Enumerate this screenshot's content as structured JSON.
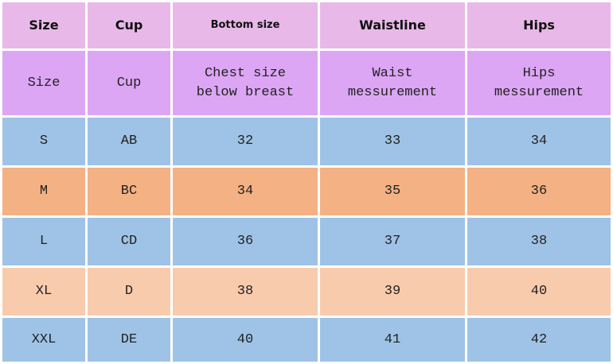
{
  "table": {
    "header": [
      "Size",
      "Cup",
      "Bottom size",
      "Waistline",
      "Hips"
    ],
    "subheader": [
      "Size",
      "Cup",
      "Chest size\nbelow breast",
      "Waist\nmessurement",
      "Hips\nmessurement"
    ],
    "rows": [
      [
        "S",
        "AB",
        32,
        33,
        34
      ],
      [
        "M",
        "BC",
        34,
        35,
        36
      ],
      [
        "L",
        "CD",
        36,
        37,
        38
      ],
      [
        "XL",
        "D",
        38,
        39,
        40
      ],
      [
        "XXL",
        "DE",
        40,
        41,
        42
      ]
    ]
  }
}
